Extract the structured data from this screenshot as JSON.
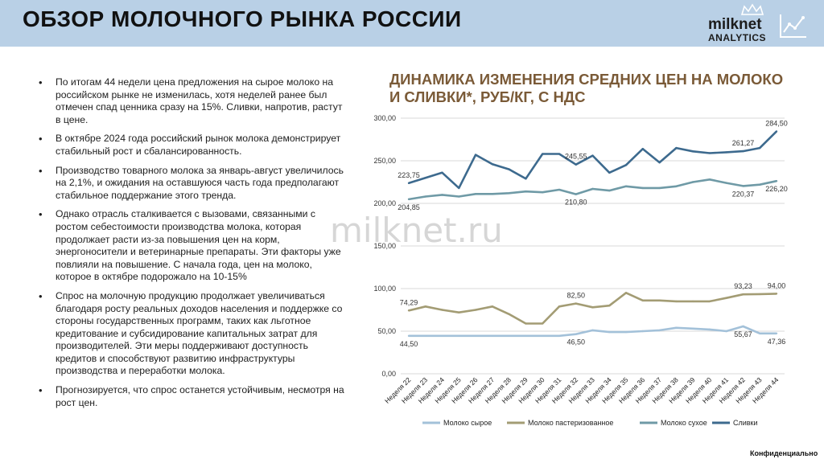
{
  "header": {
    "title": "ОБЗОР МОЛОЧНОГО РЫНКА РОССИИ",
    "logo_main": "milknet",
    "logo_sub": "ANALYTICS"
  },
  "bullets": [
    "По итогам 44 недели цена предложения на сырое молоко на российском рынке не изменилась, хотя неделей ранее был отмечен спад ценника сразу на 15%. Сливки, напротив, растут в цене.",
    "В октябре 2024 года российский рынок молока демонстрирует стабильный рост и сбалансированность.",
    "Производство товарного молока за январь-август увеличилось на 2,1%, и ожидания на оставшуюся часть года предполагают стабильное поддержание этого тренда.",
    "Однако отрасль сталкивается с вызовами, связанными с ростом себестоимости производства молока, которая продолжает расти из-за повышения цен на корм, энергоносители и ветеринарные препараты. Эти факторы уже повлияли на повышение. С начала года, цен на молоко, которое в октябре подорожало на 10-15%",
    "Спрос на молочную продукцию продолжает увеличиваться благодаря росту реальных доходов населения и поддержке со стороны государственных программ, таких как льготное кредитование и субсидирование капитальных затрат для производителей. Эти меры поддерживают доступность кредитов и способствуют развитию инфраструктуры производства и переработки молока.",
    "Прогнозируется, что спрос останется устойчивым, несмотря на рост цен."
  ],
  "watermark": "milknet.ru",
  "footer": "Конфиденциально",
  "chart_data": {
    "type": "line",
    "title": "ДИНАМИКА ИЗМЕНЕНИЯ СРЕДНИХ ЦЕН НА МОЛОКО И СЛИВКИ*, РУБ/КГ, С НДС",
    "ylim": [
      0,
      300
    ],
    "yticks": [
      "0,00",
      "50,00",
      "100,00",
      "150,00",
      "200,00",
      "250,00",
      "300,00"
    ],
    "grid": true,
    "legend": "bottom",
    "categories": [
      "Неделя 22",
      "Неделя 23",
      "Неделя 24",
      "Неделя 25",
      "Неделя 26",
      "Неделя 27",
      "Неделя 28",
      "Неделя 29",
      "Неделя 30",
      "Неделя 31",
      "Неделя 32",
      "Неделя 33",
      "Неделя 34",
      "Неделя 35",
      "Неделя 36",
      "Неделя 37",
      "Неделя 38",
      "Неделя 39",
      "Неделя 40",
      "Неделя 41",
      "Неделя 42",
      "Неделя 43",
      "Неделя 44"
    ],
    "series": [
      {
        "name": "Молоко сырое",
        "color": "#a3c1d9",
        "values": [
          44.5,
          44.5,
          44.5,
          44.5,
          44.5,
          44.5,
          44.5,
          44.5,
          44.5,
          44.5,
          46.5,
          51,
          49,
          49,
          50,
          51,
          54,
          53,
          52,
          50,
          55.67,
          47.36,
          47.36
        ]
      },
      {
        "name": "Молоко пастеризованное",
        "color": "#a39c74",
        "values": [
          74.29,
          79,
          75,
          72,
          75,
          79,
          70,
          59,
          59,
          79,
          82.5,
          78,
          80,
          95,
          86,
          86,
          85,
          85,
          85,
          89,
          93.23,
          93.5,
          94.0
        ]
      },
      {
        "name": "Молоко сухое",
        "color": "#6f9aa6",
        "values": [
          204.85,
          208,
          210,
          208,
          211,
          211,
          212,
          214,
          213,
          216,
          210.8,
          217,
          215,
          220,
          218,
          218,
          220,
          225,
          228,
          224,
          220.37,
          222,
          226.2
        ]
      },
      {
        "name": "Сливки",
        "color": "#3d6a8e",
        "values": [
          223.75,
          230,
          236,
          218,
          257,
          246,
          240,
          229,
          258,
          258,
          245.55,
          256,
          236,
          245,
          264,
          248,
          265,
          261,
          259,
          260,
          261.27,
          265,
          284.5
        ]
      }
    ],
    "data_labels": [
      {
        "series": 3,
        "index": 0,
        "text": "223,75",
        "pos": "above"
      },
      {
        "series": 3,
        "index": 10,
        "text": "245,55",
        "pos": "above"
      },
      {
        "series": 3,
        "index": 20,
        "text": "261,27",
        "pos": "above"
      },
      {
        "series": 3,
        "index": 22,
        "text": "284,50",
        "pos": "above"
      },
      {
        "series": 2,
        "index": 0,
        "text": "204,85",
        "pos": "below"
      },
      {
        "series": 2,
        "index": 10,
        "text": "210,80",
        "pos": "below"
      },
      {
        "series": 2,
        "index": 20,
        "text": "220,37",
        "pos": "below"
      },
      {
        "series": 2,
        "index": 22,
        "text": "226,20",
        "pos": "below"
      },
      {
        "series": 1,
        "index": 0,
        "text": "74,29",
        "pos": "above"
      },
      {
        "series": 1,
        "index": 10,
        "text": "82,50",
        "pos": "above"
      },
      {
        "series": 1,
        "index": 20,
        "text": "93,23",
        "pos": "above"
      },
      {
        "series": 1,
        "index": 22,
        "text": "94,00",
        "pos": "above"
      },
      {
        "series": 0,
        "index": 0,
        "text": "44,50",
        "pos": "below"
      },
      {
        "series": 0,
        "index": 10,
        "text": "46,50",
        "pos": "below"
      },
      {
        "series": 0,
        "index": 20,
        "text": "55,67",
        "pos": "below"
      },
      {
        "series": 0,
        "index": 22,
        "text": "47,36",
        "pos": "below"
      }
    ]
  }
}
